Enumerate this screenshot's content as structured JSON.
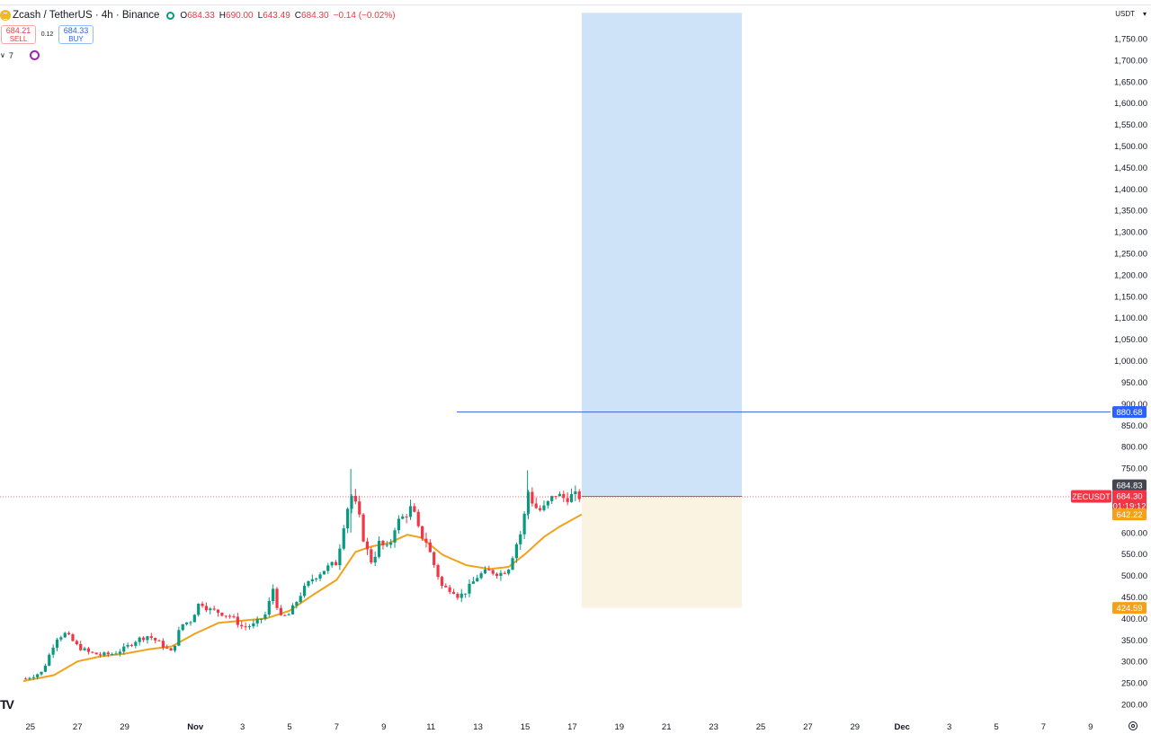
{
  "header": {
    "symbol_title": "Zcash / TetherUS · 4h · Binance",
    "open_label": "O",
    "open": "684.33",
    "high_label": "H",
    "high": "690.00",
    "low_label": "L",
    "low": "643.49",
    "close_label": "C",
    "close": "684.30",
    "change": "−0.14 (−0.02%)",
    "status_color": "#089981"
  },
  "trade": {
    "sell_price": "684.21",
    "sell_label": "SELL",
    "spread": "0.12",
    "buy_price": "684.33",
    "buy_label": "BUY"
  },
  "indicators": {
    "count": "7"
  },
  "axis": {
    "currency": "USDT",
    "currency_caret": "▾"
  },
  "chart_data": {
    "type": "candlestick",
    "symbol": "ZECUSDT",
    "ylim": [
      180,
      1810
    ],
    "yticks": [
      {
        "v": 1750,
        "label": "1,750.00"
      },
      {
        "v": 1700,
        "label": "1,700.00"
      },
      {
        "v": 1650,
        "label": "1,650.00"
      },
      {
        "v": 1600,
        "label": "1,600.00"
      },
      {
        "v": 1550,
        "label": "1,550.00"
      },
      {
        "v": 1500,
        "label": "1,500.00"
      },
      {
        "v": 1450,
        "label": "1,450.00"
      },
      {
        "v": 1400,
        "label": "1,400.00"
      },
      {
        "v": 1350,
        "label": "1,350.00"
      },
      {
        "v": 1300,
        "label": "1,300.00"
      },
      {
        "v": 1250,
        "label": "1,250.00"
      },
      {
        "v": 1200,
        "label": "1,200.00"
      },
      {
        "v": 1150,
        "label": "1,150.00"
      },
      {
        "v": 1100,
        "label": "1,100.00"
      },
      {
        "v": 1050,
        "label": "1,050.00"
      },
      {
        "v": 1000,
        "label": "1,000.00"
      },
      {
        "v": 950,
        "label": "950.00"
      },
      {
        "v": 900,
        "label": "900.00"
      },
      {
        "v": 850,
        "label": "850.00"
      },
      {
        "v": 800,
        "label": "800.00"
      },
      {
        "v": 750,
        "label": "750.00"
      },
      {
        "v": 600,
        "label": "600.00"
      },
      {
        "v": 550,
        "label": "550.00"
      },
      {
        "v": 500,
        "label": "500.00"
      },
      {
        "v": 450,
        "label": "450.00"
      },
      {
        "v": 400,
        "label": "400.00"
      },
      {
        "v": 350,
        "label": "350.00"
      },
      {
        "v": 300,
        "label": "300.00"
      },
      {
        "v": 250,
        "label": "250.00"
      },
      {
        "v": 200,
        "label": "200.00"
      }
    ],
    "xticks": [
      {
        "d": -1,
        "label": "25"
      },
      {
        "d": 1,
        "label": "27"
      },
      {
        "d": 3,
        "label": "29"
      },
      {
        "d": 6,
        "label": "Nov",
        "bold": true
      },
      {
        "d": 8,
        "label": "3"
      },
      {
        "d": 10,
        "label": "5"
      },
      {
        "d": 12,
        "label": "7"
      },
      {
        "d": 14,
        "label": "9"
      },
      {
        "d": 16,
        "label": "11"
      },
      {
        "d": 18,
        "label": "13"
      },
      {
        "d": 20,
        "label": "15"
      },
      {
        "d": 22,
        "label": "17"
      },
      {
        "d": 24,
        "label": "19"
      },
      {
        "d": 26,
        "label": "21"
      },
      {
        "d": 28,
        "label": "23"
      },
      {
        "d": 30,
        "label": "25"
      },
      {
        "d": 32,
        "label": "27"
      },
      {
        "d": 34,
        "label": "29"
      },
      {
        "d": 36,
        "label": "Dec",
        "bold": true
      },
      {
        "d": 38,
        "label": "3"
      },
      {
        "d": 40,
        "label": "5"
      },
      {
        "d": 42,
        "label": "7"
      },
      {
        "d": 44,
        "label": "9"
      }
    ],
    "colors": {
      "up": "#089981",
      "down": "#f23645",
      "ma": "#f4a11a",
      "profit": "#cfe3f8",
      "loss": "#fbf3e2",
      "line": "#3860d6"
    },
    "candle_anchors": [
      {
        "d": -1.2,
        "p": 260
      },
      {
        "d": -0.5,
        "p": 275
      },
      {
        "d": 0.1,
        "p": 355
      },
      {
        "d": 0.5,
        "p": 365
      },
      {
        "d": 1.0,
        "p": 335
      },
      {
        "d": 1.5,
        "p": 320
      },
      {
        "d": 2.0,
        "p": 315
      },
      {
        "d": 2.5,
        "p": 318
      },
      {
        "d": 3.0,
        "p": 330
      },
      {
        "d": 3.5,
        "p": 350
      },
      {
        "d": 4.0,
        "p": 360
      },
      {
        "d": 4.5,
        "p": 342
      },
      {
        "d": 5.0,
        "p": 320
      },
      {
        "d": 5.4,
        "p": 385
      },
      {
        "d": 5.8,
        "p": 395
      },
      {
        "d": 6.2,
        "p": 440
      },
      {
        "d": 6.6,
        "p": 420
      },
      {
        "d": 7.0,
        "p": 415
      },
      {
        "d": 7.5,
        "p": 405
      },
      {
        "d": 8.0,
        "p": 380
      },
      {
        "d": 8.5,
        "p": 385
      },
      {
        "d": 9.0,
        "p": 410
      },
      {
        "d": 9.3,
        "p": 470
      },
      {
        "d": 9.6,
        "p": 400
      },
      {
        "d": 10.0,
        "p": 410
      },
      {
        "d": 10.5,
        "p": 460
      },
      {
        "d": 11.0,
        "p": 495
      },
      {
        "d": 11.5,
        "p": 515
      },
      {
        "d": 12.0,
        "p": 530
      },
      {
        "d": 12.3,
        "p": 620
      },
      {
        "d": 12.6,
        "p": 690
      },
      {
        "d": 12.9,
        "p": 650
      },
      {
        "d": 13.2,
        "p": 570
      },
      {
        "d": 13.5,
        "p": 530
      },
      {
        "d": 13.8,
        "p": 575
      },
      {
        "d": 14.2,
        "p": 560
      },
      {
        "d": 14.5,
        "p": 620
      },
      {
        "d": 14.9,
        "p": 640
      },
      {
        "d": 15.2,
        "p": 660
      },
      {
        "d": 15.5,
        "p": 600
      },
      {
        "d": 15.8,
        "p": 580
      },
      {
        "d": 16.1,
        "p": 530
      },
      {
        "d": 16.5,
        "p": 470
      },
      {
        "d": 16.9,
        "p": 470
      },
      {
        "d": 17.2,
        "p": 450
      },
      {
        "d": 17.6,
        "p": 470
      },
      {
        "d": 18.0,
        "p": 500
      },
      {
        "d": 18.5,
        "p": 510
      },
      {
        "d": 19.0,
        "p": 505
      },
      {
        "d": 19.3,
        "p": 520
      },
      {
        "d": 19.6,
        "p": 570
      },
      {
        "d": 19.9,
        "p": 610
      },
      {
        "d": 20.1,
        "p": 700
      },
      {
        "d": 20.4,
        "p": 660
      },
      {
        "d": 20.7,
        "p": 650
      },
      {
        "d": 21.0,
        "p": 670
      },
      {
        "d": 21.3,
        "p": 690
      },
      {
        "d": 21.6,
        "p": 680
      },
      {
        "d": 22.0,
        "p": 685
      },
      {
        "d": 22.3,
        "p": 684.3
      }
    ],
    "ma_points": [
      {
        "d": -1.3,
        "p": 254
      },
      {
        "d": 0,
        "p": 268
      },
      {
        "d": 1,
        "p": 300
      },
      {
        "d": 2,
        "p": 312
      },
      {
        "d": 3,
        "p": 318
      },
      {
        "d": 4,
        "p": 328
      },
      {
        "d": 5,
        "p": 335
      },
      {
        "d": 6,
        "p": 365
      },
      {
        "d": 7,
        "p": 390
      },
      {
        "d": 8,
        "p": 395
      },
      {
        "d": 9,
        "p": 400
      },
      {
        "d": 10,
        "p": 418
      },
      {
        "d": 11,
        "p": 455
      },
      {
        "d": 12,
        "p": 490
      },
      {
        "d": 12.8,
        "p": 555
      },
      {
        "d": 13.5,
        "p": 568
      },
      {
        "d": 14.2,
        "p": 575
      },
      {
        "d": 15.0,
        "p": 595
      },
      {
        "d": 15.6,
        "p": 588
      },
      {
        "d": 16.5,
        "p": 548
      },
      {
        "d": 17.5,
        "p": 524
      },
      {
        "d": 18.5,
        "p": 515
      },
      {
        "d": 19.3,
        "p": 520
      },
      {
        "d": 20.0,
        "p": 550
      },
      {
        "d": 20.8,
        "p": 590
      },
      {
        "d": 21.5,
        "p": 615
      },
      {
        "d": 22.4,
        "p": 642.22
      }
    ],
    "position": {
      "d_start": 22.4,
      "d_end": 29.2,
      "entry": 684.3,
      "target": 1810,
      "stop": 424.59
    },
    "hline": {
      "d_start": 17.1,
      "price": 880.68
    },
    "price_badges": {
      "line": "880.68",
      "high": "684.83",
      "last": "684.30",
      "countdown": "01:19:12",
      "ma": "642.22",
      "stop": "424.59",
      "symbol": "ZECUSDT"
    }
  }
}
